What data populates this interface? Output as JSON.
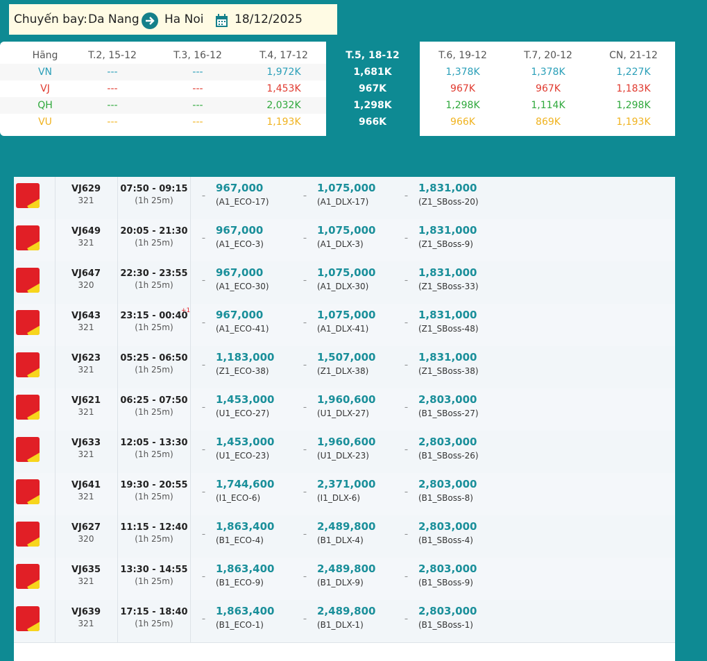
{
  "header": {
    "label": "Chuyến bay:",
    "from": "Da Nang",
    "to": "Ha Noi",
    "date": "18/12/2025"
  },
  "summary": {
    "columns": [
      "Hãng",
      "T.2, 15-12",
      "T.3, 16-12",
      "T.4, 17-12",
      "T.5, 18-12",
      "T.6, 19-12",
      "T.7, 20-12",
      "CN, 21-12"
    ],
    "rows": [
      {
        "airline": "VN",
        "color": "#2a9fb8",
        "prices": [
          "---",
          "---",
          "1,972K",
          "1,681K",
          "1,378K",
          "1,378K",
          "1,227K"
        ]
      },
      {
        "airline": "VJ",
        "color": "#e03a2f",
        "prices": [
          "---",
          "---",
          "1,453K",
          "967K",
          "967K",
          "967K",
          "1,183K"
        ]
      },
      {
        "airline": "QH",
        "color": "#2ea83b",
        "prices": [
          "---",
          "---",
          "2,032K",
          "1,298K",
          "1,298K",
          "1,114K",
          "1,298K"
        ]
      },
      {
        "airline": "VU",
        "color": "#f0b320",
        "prices": [
          "---",
          "---",
          "1,193K",
          "966K",
          "966K",
          "869K",
          "1,193K"
        ]
      }
    ]
  },
  "fare_prefix": "–",
  "flights": [
    {
      "code": "VJ629",
      "aircraft": "321",
      "time": "07:50 - 09:15",
      "duration": "(1h 25m)",
      "fares": [
        [
          "967,000",
          "(A1_ECO-17)"
        ],
        [
          "1,075,000",
          "(A1_DLX-17)"
        ],
        [
          "1,831,000",
          "(Z1_SBoss-20)"
        ]
      ]
    },
    {
      "code": "VJ649",
      "aircraft": "321",
      "time": "20:05 - 21:30",
      "duration": "(1h 25m)",
      "fares": [
        [
          "967,000",
          "(A1_ECO-3)"
        ],
        [
          "1,075,000",
          "(A1_DLX-3)"
        ],
        [
          "1,831,000",
          "(Z1_SBoss-9)"
        ]
      ]
    },
    {
      "code": "VJ647",
      "aircraft": "320",
      "time": "22:30 - 23:55",
      "duration": "(1h 25m)",
      "fares": [
        [
          "967,000",
          "(A1_ECO-30)"
        ],
        [
          "1,075,000",
          "(A1_DLX-30)"
        ],
        [
          "1,831,000",
          "(Z1_SBoss-33)"
        ]
      ]
    },
    {
      "code": "VJ643",
      "aircraft": "321",
      "time": "23:15 - 00:40",
      "next_day": "+1",
      "duration": "(1h 25m)",
      "fares": [
        [
          "967,000",
          "(A1_ECO-41)"
        ],
        [
          "1,075,000",
          "(A1_DLX-41)"
        ],
        [
          "1,831,000",
          "(Z1_SBoss-48)"
        ]
      ]
    },
    {
      "code": "VJ623",
      "aircraft": "321",
      "time": "05:25 - 06:50",
      "duration": "(1h 25m)",
      "fares": [
        [
          "1,183,000",
          "(Z1_ECO-38)"
        ],
        [
          "1,507,000",
          "(Z1_DLX-38)"
        ],
        [
          "1,831,000",
          "(Z1_SBoss-38)"
        ]
      ]
    },
    {
      "code": "VJ621",
      "aircraft": "321",
      "time": "06:25 - 07:50",
      "duration": "(1h 25m)",
      "fares": [
        [
          "1,453,000",
          "(U1_ECO-27)"
        ],
        [
          "1,960,600",
          "(U1_DLX-27)"
        ],
        [
          "2,803,000",
          "(B1_SBoss-27)"
        ]
      ]
    },
    {
      "code": "VJ633",
      "aircraft": "321",
      "time": "12:05 - 13:30",
      "duration": "(1h 25m)",
      "fares": [
        [
          "1,453,000",
          "(U1_ECO-23)"
        ],
        [
          "1,960,600",
          "(U1_DLX-23)"
        ],
        [
          "2,803,000",
          "(B1_SBoss-26)"
        ]
      ]
    },
    {
      "code": "VJ641",
      "aircraft": "321",
      "time": "19:30 - 20:55",
      "duration": "(1h 25m)",
      "fares": [
        [
          "1,744,600",
          "(I1_ECO-6)"
        ],
        [
          "2,371,000",
          "(I1_DLX-6)"
        ],
        [
          "2,803,000",
          "(B1_SBoss-8)"
        ]
      ]
    },
    {
      "code": "VJ627",
      "aircraft": "320",
      "time": "11:15 - 12:40",
      "duration": "(1h 25m)",
      "fares": [
        [
          "1,863,400",
          "(B1_ECO-4)"
        ],
        [
          "2,489,800",
          "(B1_DLX-4)"
        ],
        [
          "2,803,000",
          "(B1_SBoss-4)"
        ]
      ]
    },
    {
      "code": "VJ635",
      "aircraft": "321",
      "time": "13:30 - 14:55",
      "duration": "(1h 25m)",
      "fares": [
        [
          "1,863,400",
          "(B1_ECO-9)"
        ],
        [
          "2,489,800",
          "(B1_DLX-9)"
        ],
        [
          "2,803,000",
          "(B1_SBoss-9)"
        ]
      ]
    },
    {
      "code": "VJ639",
      "aircraft": "321",
      "time": "17:15 - 18:40",
      "duration": "(1h 25m)",
      "fares": [
        [
          "1,863,400",
          "(B1_ECO-1)"
        ],
        [
          "2,489,800",
          "(B1_DLX-1)"
        ],
        [
          "2,803,000",
          "(B1_SBoss-1)"
        ]
      ]
    }
  ]
}
